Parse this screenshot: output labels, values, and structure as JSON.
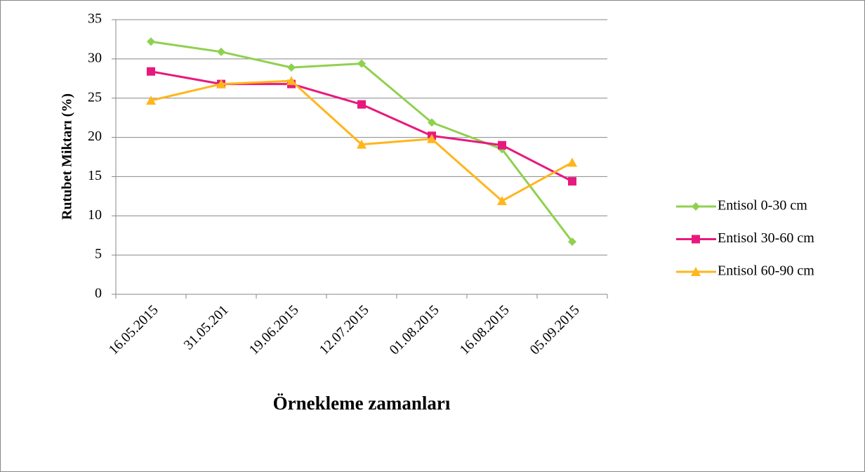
{
  "chart_data": {
    "type": "line",
    "x_label": "Örnekleme zamanları",
    "y_label": "Rutubet Miktarı (%)",
    "categories": [
      "16.05.2015",
      "31.05.201",
      "19.06.2015",
      "12.07.2015",
      "01.08.2015",
      "16.08.2015",
      "05.09.2015"
    ],
    "series": [
      {
        "name": "Entisol 0-30 cm",
        "color": "#8fd14f",
        "marker": "diamond",
        "values": [
          32.2,
          30.9,
          28.9,
          29.4,
          21.9,
          18.5,
          6.7
        ]
      },
      {
        "name": "Entisol 30-60 cm",
        "color": "#e8197d",
        "marker": "square",
        "values": [
          28.4,
          26.8,
          26.8,
          24.2,
          20.2,
          19.0,
          14.4
        ]
      },
      {
        "name": "Entisol 60-90 cm",
        "color": "#ffb61c",
        "marker": "triangle",
        "values": [
          24.7,
          26.8,
          27.2,
          19.1,
          19.8,
          11.9,
          16.8
        ]
      }
    ],
    "ylim": [
      0,
      35
    ],
    "yticks": [
      0,
      5,
      10,
      15,
      20,
      25,
      30,
      35
    ],
    "grid": true,
    "legend": "right"
  }
}
